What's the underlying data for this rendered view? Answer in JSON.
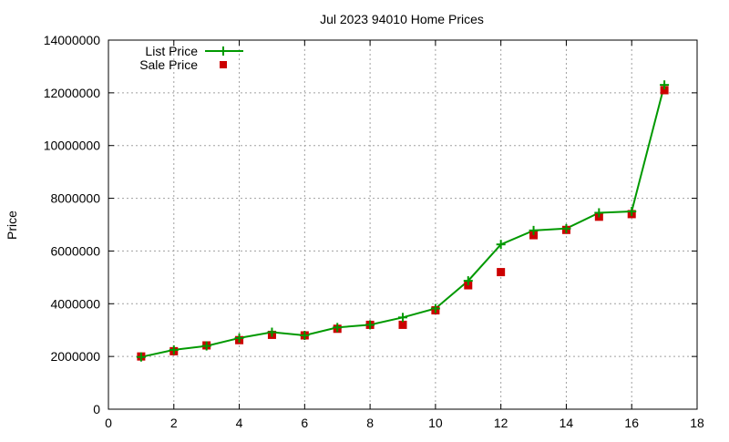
{
  "chart_data": {
    "type": "line",
    "title": "Jul 2023 94010 Home Prices",
    "xlabel": "",
    "ylabel": "Price",
    "xlim": [
      0,
      18
    ],
    "ylim": [
      0,
      14000000
    ],
    "x_ticks": [
      0,
      2,
      4,
      6,
      8,
      10,
      12,
      14,
      16,
      18
    ],
    "y_ticks": [
      0,
      2000000,
      4000000,
      6000000,
      8000000,
      10000000,
      12000000,
      14000000
    ],
    "grid": true,
    "legend_position": "top-left",
    "x": [
      1,
      2,
      3,
      4,
      5,
      6,
      7,
      8,
      9,
      10,
      11,
      12,
      13,
      14,
      15,
      16,
      17
    ],
    "series": [
      {
        "name": "List Price",
        "style": "line+cross",
        "color": "#009900",
        "values": [
          1980000,
          2250000,
          2400000,
          2700000,
          2920000,
          2800000,
          3100000,
          3200000,
          3480000,
          3820000,
          4870000,
          6250000,
          6780000,
          6850000,
          7450000,
          7500000,
          12300000
        ]
      },
      {
        "name": "Sale Price",
        "style": "square",
        "color": "#cc0000",
        "values": [
          2000000,
          2200000,
          2420000,
          2620000,
          2820000,
          2800000,
          3050000,
          3200000,
          3200000,
          3750000,
          4700000,
          5200000,
          6600000,
          6800000,
          7300000,
          7400000,
          12100000
        ]
      }
    ]
  }
}
